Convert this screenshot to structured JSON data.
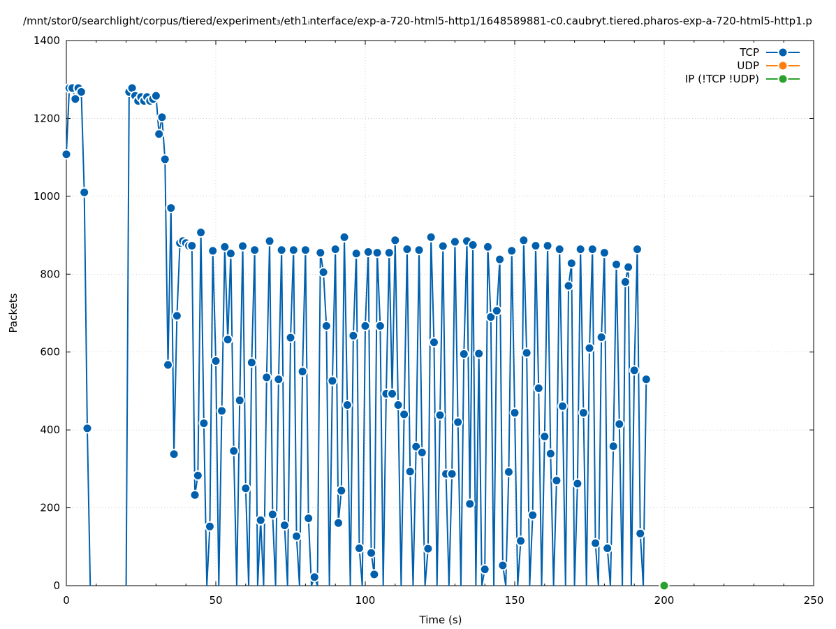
{
  "chart_data": {
    "type": "line",
    "title": "/mnt/stor0/searchlight/corpus/tiered/experiment₃/eth1ᵢnterface/exp-a-720-html5-http1/1648589881-c0.caubryt.tiered.pharos-exp-a-720-html5-http1.p",
    "xlabel": "Time (s)",
    "ylabel": "Packets",
    "xlim": [
      0,
      250
    ],
    "ylim": [
      0,
      1400
    ],
    "x_ticks": [
      0,
      50,
      100,
      150,
      200,
      250
    ],
    "x_tick_labels": [
      "0",
      "50",
      "100",
      "150",
      "200",
      "250"
    ],
    "y_ticks": [
      0,
      200,
      400,
      600,
      800,
      1000,
      1200,
      1400
    ],
    "y_tick_labels": [
      "0",
      "200",
      "400",
      "600",
      "800",
      "1000",
      "1200",
      "1400"
    ],
    "grid": true,
    "legend_position": "top-right",
    "series": [
      {
        "name": "TCP",
        "color": "#0060ad",
        "segments": [
          [
            [
              0,
              1108
            ],
            [
              1,
              1278
            ],
            [
              2,
              1278
            ],
            [
              3,
              1250
            ],
            [
              4,
              1278
            ],
            [
              5,
              1268
            ],
            [
              6,
              1010
            ],
            [
              7,
              404
            ],
            [
              8,
              0
            ]
          ],
          [
            [
              20,
              0
            ],
            [
              21,
              1268
            ],
            [
              22,
              1278
            ],
            [
              23,
              1258
            ],
            [
              24,
              1245
            ],
            [
              25,
              1255
            ],
            [
              26,
              1245
            ],
            [
              27,
              1255
            ],
            [
              28,
              1245
            ],
            [
              29,
              1250
            ],
            [
              30,
              1258
            ],
            [
              31,
              1160
            ],
            [
              32,
              1203
            ],
            [
              33,
              1095
            ],
            [
              34,
              567
            ],
            [
              35,
              970
            ],
            [
              36,
              338
            ],
            [
              37,
              693
            ],
            [
              38,
              880
            ],
            [
              39,
              885
            ],
            [
              40,
              880
            ],
            [
              41,
              873
            ],
            [
              42,
              873
            ],
            [
              43,
              233
            ],
            [
              44,
              283
            ],
            [
              45,
              907
            ],
            [
              46,
              417
            ],
            [
              47,
              0
            ],
            [
              48,
              152
            ],
            [
              49,
              860
            ],
            [
              50,
              577
            ],
            [
              51,
              0
            ],
            [
              52,
              449
            ],
            [
              53,
              870
            ],
            [
              54,
              632
            ],
            [
              55,
              853
            ],
            [
              56,
              346
            ],
            [
              57,
              0
            ],
            [
              58,
              476
            ],
            [
              59,
              872
            ],
            [
              60,
              250
            ],
            [
              61,
              0
            ],
            [
              62,
              573
            ],
            [
              63,
              862
            ],
            [
              64,
              0
            ],
            [
              65,
              168
            ],
            [
              66,
              0
            ],
            [
              67,
              535
            ],
            [
              68,
              885
            ],
            [
              69,
              183
            ],
            [
              70,
              0
            ],
            [
              71,
              530
            ],
            [
              72,
              862
            ],
            [
              73,
              155
            ],
            [
              74,
              0
            ],
            [
              75,
              637
            ],
            [
              76,
              862
            ],
            [
              77,
              127
            ],
            [
              78,
              0
            ],
            [
              79,
              550
            ],
            [
              80,
              862
            ],
            [
              81,
              173
            ],
            [
              82,
              0
            ],
            [
              83,
              22
            ],
            [
              84,
              0
            ],
            [
              85,
              855
            ],
            [
              86,
              805
            ],
            [
              87,
              667
            ],
            [
              88,
              0
            ],
            [
              89,
              526
            ],
            [
              90,
              864
            ],
            [
              91,
              161
            ],
            [
              92,
              244
            ],
            [
              93,
              895
            ],
            [
              94,
              464
            ],
            [
              95,
              0
            ],
            [
              96,
              642
            ],
            [
              97,
              853
            ],
            [
              98,
              96
            ],
            [
              99,
              0
            ],
            [
              100,
              667
            ],
            [
              101,
              857
            ],
            [
              102,
              84
            ],
            [
              103,
              29
            ],
            [
              104,
              855
            ],
            [
              105,
              667
            ],
            [
              106,
              0
            ],
            [
              107,
              493
            ],
            [
              108,
              855
            ],
            [
              109,
              493
            ],
            [
              110,
              887
            ],
            [
              111,
              464
            ],
            [
              112,
              0
            ],
            [
              113,
              440
            ],
            [
              114,
              864
            ],
            [
              115,
              293
            ],
            [
              116,
              0
            ],
            [
              117,
              357
            ],
            [
              118,
              862
            ],
            [
              119,
              342
            ],
            [
              120,
              0
            ],
            [
              121,
              95
            ],
            [
              122,
              895
            ],
            [
              123,
              625
            ],
            [
              124,
              0
            ],
            [
              125,
              438
            ],
            [
              126,
              872
            ],
            [
              127,
              287
            ],
            [
              128,
              0
            ],
            [
              129,
              287
            ],
            [
              130,
              883
            ],
            [
              131,
              420
            ],
            [
              132,
              0
            ],
            [
              133,
              595
            ],
            [
              134,
              885
            ],
            [
              135,
              210
            ],
            [
              136,
              875
            ],
            [
              137,
              0
            ],
            [
              138,
              596
            ],
            [
              139,
              0
            ],
            [
              140,
              42
            ],
            [
              141,
              870
            ],
            [
              142,
              690
            ],
            [
              143,
              0
            ],
            [
              144,
              706
            ],
            [
              145,
              838
            ],
            [
              146,
              52
            ],
            [
              147,
              0
            ],
            [
              148,
              292
            ],
            [
              149,
              860
            ],
            [
              150,
              444
            ],
            [
              151,
              0
            ],
            [
              152,
              115
            ],
            [
              153,
              887
            ],
            [
              154,
              598
            ],
            [
              155,
              0
            ],
            [
              156,
              181
            ],
            [
              157,
              873
            ],
            [
              158,
              507
            ],
            [
              159,
              0
            ],
            [
              160,
              383
            ],
            [
              161,
              873
            ],
            [
              162,
              339
            ],
            [
              163,
              0
            ],
            [
              164,
              270
            ],
            [
              165,
              864
            ],
            [
              166,
              461
            ],
            [
              167,
              0
            ],
            [
              168,
              770
            ],
            [
              169,
              828
            ],
            [
              170,
              0
            ],
            [
              171,
              262
            ],
            [
              172,
              864
            ],
            [
              173,
              444
            ],
            [
              174,
              0
            ],
            [
              175,
              610
            ],
            [
              176,
              864
            ],
            [
              177,
              109
            ],
            [
              178,
              0
            ],
            [
              179,
              638
            ],
            [
              180,
              855
            ],
            [
              181,
              96
            ],
            [
              182,
              0
            ],
            [
              183,
              358
            ],
            [
              184,
              825
            ],
            [
              185,
              415
            ],
            [
              186,
              0
            ],
            [
              187,
              780
            ],
            [
              188,
              818
            ],
            [
              189,
              0
            ],
            [
              190,
              553
            ],
            [
              191,
              864
            ],
            [
              192,
              134
            ],
            [
              193,
              0
            ],
            [
              194,
              530
            ]
          ]
        ]
      },
      {
        "name": "UDP",
        "color": "#ff7f0e",
        "segments": []
      },
      {
        "name": "IP (!TCP  !UDP)",
        "color": "#2ca02c",
        "segments": [
          [
            [
              200,
              0
            ]
          ]
        ]
      }
    ]
  }
}
